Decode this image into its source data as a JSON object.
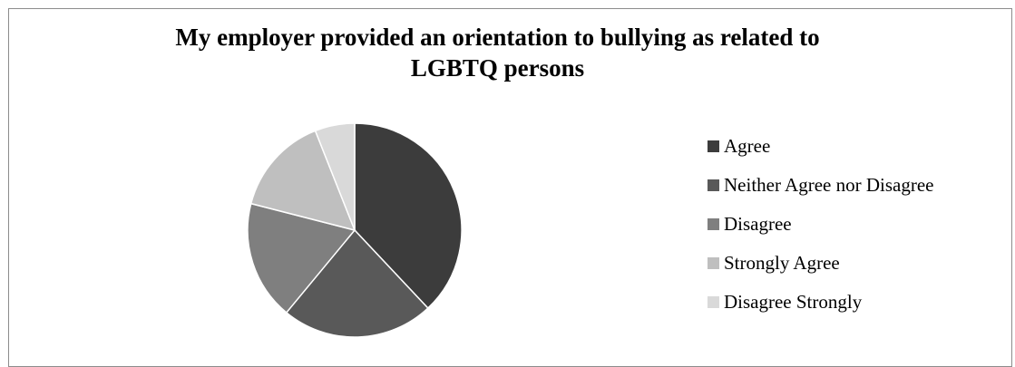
{
  "chart_data": {
    "type": "pie",
    "title": "My employer provided an orientation to bullying as related to LGBTQ persons",
    "title_lines": [
      "My employer provided an orientation to bullying as related to",
      "LGBTQ persons"
    ],
    "categories": [
      "Agree",
      "Neither Agree nor Disagree",
      "Disagree",
      "Strongly Agree",
      "Disagree Strongly"
    ],
    "values": [
      38,
      23,
      18,
      15,
      6
    ],
    "colors": [
      "#3c3c3c",
      "#595959",
      "#7f7f7f",
      "#bfbfbf",
      "#d9d9d9"
    ],
    "start_angle_deg": 0,
    "direction": "clockwise",
    "legend_position": "right"
  }
}
